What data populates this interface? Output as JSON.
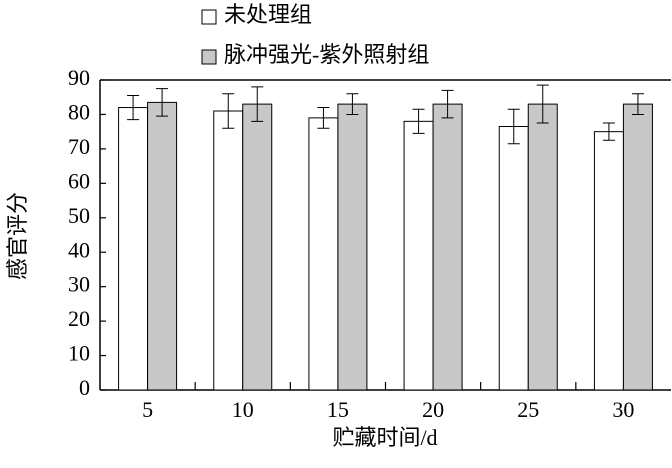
{
  "chart_data": {
    "type": "bar",
    "x_label": "贮藏时间/d",
    "y_label": "感官评分",
    "categories": [
      "5",
      "10",
      "15",
      "20",
      "25",
      "30"
    ],
    "series": [
      {
        "name": "未处理组",
        "color": "#ffffff",
        "values": [
          82,
          81,
          79,
          78,
          76.5,
          75
        ],
        "errors": [
          3.5,
          5,
          3,
          3.5,
          5,
          2.5
        ]
      },
      {
        "name": "脉冲强光-紫外照射组",
        "color": "#c8c8c8",
        "values": [
          83.5,
          83,
          83,
          83,
          83,
          83
        ],
        "errors": [
          4,
          5,
          3,
          4,
          5.5,
          3
        ]
      }
    ],
    "ylim": [
      0,
      90
    ],
    "yticks": [
      0,
      10,
      20,
      30,
      40,
      50,
      60,
      70,
      80,
      90
    ],
    "legend": "top"
  }
}
